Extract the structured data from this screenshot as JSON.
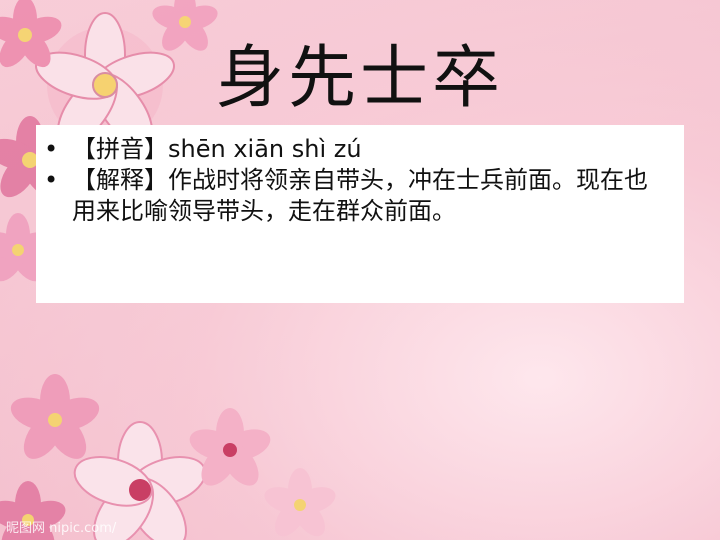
{
  "slide": {
    "title": "身先士卒",
    "bullets": [
      {
        "marker": "•",
        "text": "【拼音】shēn xiān shì zú"
      },
      {
        "marker": "•",
        "text": "【解释】作战时将领亲自带头，冲在士兵前面。现在也用来比喻领导带头，走在群众前面。"
      }
    ],
    "watermark": "昵图网 nipic.com/"
  },
  "colors": {
    "background": "#f6c9d4",
    "box": "#ffffff",
    "text": "#111111"
  }
}
